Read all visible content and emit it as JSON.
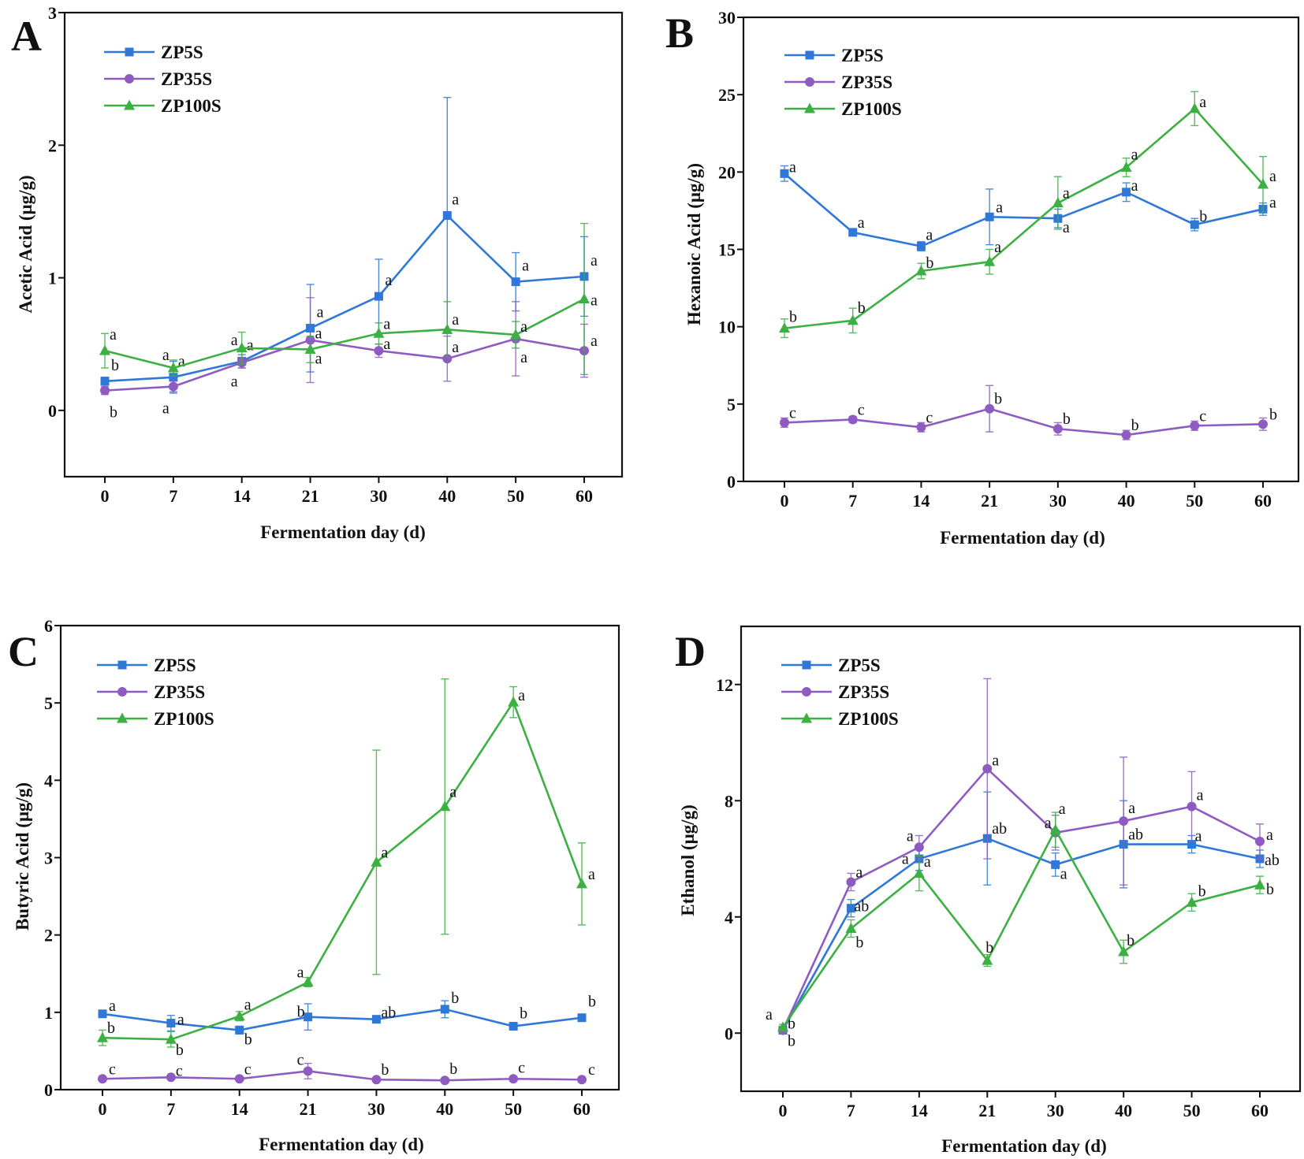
{
  "figure": {
    "series_names": [
      "ZP5S",
      "ZP35S",
      "ZP100S"
    ],
    "series_colors": {
      "ZP5S": "#2f78d8",
      "ZP35S": "#8e5cc0",
      "ZP100S": "#3cb043"
    },
    "series_markers": {
      "ZP5S": "square",
      "ZP35S": "circle",
      "ZP100S": "triangle"
    }
  },
  "chart_data": [
    {
      "panel": "A",
      "type": "line",
      "title": "",
      "xlabel": "Fermentation day (d)",
      "ylabel": "Acetic Acid (μg/g)",
      "categories": [
        "0",
        "7",
        "14",
        "21",
        "30",
        "40",
        "50",
        "60"
      ],
      "ylim": [
        -0.5,
        3
      ],
      "yticks": [
        0,
        1,
        2,
        3
      ],
      "legend": "top-left",
      "series": [
        {
          "name": "ZP5S",
          "values": [
            0.22,
            0.25,
            0.37,
            0.62,
            0.86,
            1.47,
            0.97,
            1.01
          ],
          "errors": [
            0.03,
            0.12,
            0.05,
            0.33,
            0.28,
            0.89,
            0.22,
            0.3
          ],
          "labels": [
            "b",
            "a",
            "a",
            "a",
            "a",
            "a",
            "a",
            "a"
          ]
        },
        {
          "name": "ZP35S",
          "values": [
            0.15,
            0.18,
            0.36,
            0.53,
            0.45,
            0.39,
            0.54,
            0.45
          ],
          "errors": [
            0.03,
            0.04,
            0.04,
            0.32,
            0.05,
            0.17,
            0.28,
            0.2
          ],
          "labels": [
            "b",
            "a",
            "a",
            "a",
            "a",
            "a",
            "a",
            "a"
          ]
        },
        {
          "name": "ZP100S",
          "values": [
            0.45,
            0.32,
            0.47,
            0.46,
            0.58,
            0.61,
            0.57,
            0.84
          ],
          "errors": [
            0.13,
            0.06,
            0.12,
            0.1,
            0.08,
            0.21,
            0.1,
            0.57
          ],
          "labels": [
            "a",
            "a",
            "a",
            "a",
            "a",
            "a",
            "a",
            "a"
          ]
        }
      ]
    },
    {
      "panel": "B",
      "type": "line",
      "title": "",
      "xlabel": "Fermentation day (d)",
      "ylabel": "Hexanoic Acid (μg/g)",
      "categories": [
        "0",
        "7",
        "14",
        "21",
        "30",
        "40",
        "50",
        "60"
      ],
      "ylim": [
        0,
        30
      ],
      "yticks": [
        0,
        5,
        10,
        15,
        20,
        25,
        30
      ],
      "legend": "top-left",
      "series": [
        {
          "name": "ZP5S",
          "values": [
            19.9,
            16.1,
            15.2,
            17.1,
            17.0,
            18.7,
            16.6,
            17.6
          ],
          "errors": [
            0.5,
            0.2,
            0.3,
            1.8,
            0.6,
            0.6,
            0.4,
            0.4
          ],
          "labels": [
            "a",
            "a",
            "a",
            "a",
            "a",
            "a",
            "b",
            "a"
          ]
        },
        {
          "name": "ZP35S",
          "values": [
            3.8,
            4.0,
            3.5,
            4.7,
            3.4,
            3.0,
            3.6,
            3.7
          ],
          "errors": [
            0.3,
            0.2,
            0.3,
            1.5,
            0.4,
            0.3,
            0.3,
            0.4
          ],
          "labels": [
            "c",
            "c",
            "c",
            "b",
            "b",
            "b",
            "c",
            "b"
          ]
        },
        {
          "name": "ZP100S",
          "values": [
            9.9,
            10.4,
            13.6,
            14.2,
            18.0,
            20.3,
            24.1,
            19.2
          ],
          "errors": [
            0.6,
            0.8,
            0.5,
            0.8,
            1.7,
            0.6,
            1.1,
            1.8
          ],
          "labels": [
            "b",
            "b",
            "b",
            "a",
            "a",
            "a",
            "a",
            "a"
          ]
        }
      ]
    },
    {
      "panel": "C",
      "type": "line",
      "title": "",
      "xlabel": "Fermentation day (d)",
      "ylabel": "Butyric Acid (μg/g)",
      "categories": [
        "0",
        "7",
        "14",
        "21",
        "30",
        "40",
        "50",
        "60"
      ],
      "ylim": [
        0,
        6
      ],
      "yticks": [
        0,
        1,
        2,
        3,
        4,
        5,
        6
      ],
      "legend": "top-left",
      "series": [
        {
          "name": "ZP5S",
          "values": [
            0.98,
            0.86,
            0.77,
            0.94,
            0.91,
            1.04,
            0.82,
            0.93
          ],
          "errors": [
            0.03,
            0.1,
            0.05,
            0.17,
            0.04,
            0.11,
            0.03,
            0.04
          ],
          "labels": [
            "a",
            "a",
            "b",
            "b",
            "ab",
            "b",
            "b",
            "b"
          ]
        },
        {
          "name": "ZP35S",
          "values": [
            0.14,
            0.16,
            0.14,
            0.24,
            0.13,
            0.12,
            0.14,
            0.13
          ],
          "errors": [
            0.02,
            0.02,
            0.02,
            0.1,
            0.02,
            0.02,
            0.02,
            0.02
          ],
          "labels": [
            "c",
            "c",
            "c",
            "c",
            "b",
            "b",
            "c",
            "c"
          ]
        },
        {
          "name": "ZP100S",
          "values": [
            0.67,
            0.65,
            0.95,
            1.39,
            2.94,
            3.66,
            5.01,
            2.66
          ],
          "errors": [
            0.1,
            0.1,
            0.06,
            0.06,
            1.45,
            1.65,
            0.2,
            0.53
          ],
          "labels": [
            "b",
            "b",
            "a",
            "a",
            "a",
            "a",
            "a",
            "a"
          ]
        }
      ]
    },
    {
      "panel": "D",
      "type": "line",
      "title": "",
      "xlabel": "Fermentation day (d)",
      "ylabel": "Ethanol (μg/g)",
      "categories": [
        "0",
        "7",
        "14",
        "21",
        "30",
        "40",
        "50",
        "60"
      ],
      "ylim": [
        -2,
        14
      ],
      "yticks": [
        0,
        4,
        8,
        12
      ],
      "legend": "top-left",
      "series": [
        {
          "name": "ZP5S",
          "values": [
            0.1,
            4.3,
            6.0,
            6.7,
            5.8,
            6.5,
            6.5,
            6.0
          ],
          "errors": [
            0.1,
            0.3,
            0.4,
            1.6,
            0.4,
            1.5,
            0.3,
            0.3
          ],
          "labels": [
            "b",
            "ab",
            "a",
            "ab",
            "a",
            "ab",
            "a",
            "ab"
          ]
        },
        {
          "name": "ZP35S",
          "values": [
            0.1,
            5.2,
            6.4,
            9.1,
            6.9,
            7.3,
            7.8,
            6.6
          ],
          "errors": [
            0.1,
            0.3,
            0.4,
            3.1,
            0.6,
            2.2,
            1.2,
            0.6
          ],
          "labels": [
            "b",
            "a",
            "a",
            "a",
            "a",
            "a",
            "a",
            "a"
          ]
        },
        {
          "name": "ZP100S",
          "values": [
            0.2,
            3.6,
            5.5,
            2.5,
            7.0,
            2.8,
            4.5,
            5.1
          ],
          "errors": [
            0.1,
            0.3,
            0.6,
            0.2,
            0.6,
            0.4,
            0.3,
            0.3
          ],
          "labels": [
            "a",
            "b",
            "a",
            "b",
            "a",
            "b",
            "b",
            "b"
          ]
        }
      ]
    }
  ]
}
